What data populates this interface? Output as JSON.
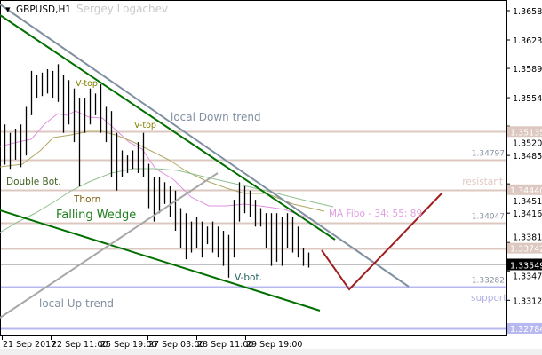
{
  "header": {
    "symbol": "GBPUSD,H1",
    "author": "Sergey Logachev"
  },
  "chart_data": {
    "type": "bar",
    "title": "GBPUSD,H1",
    "ylim": [
      1.3272,
      1.367
    ],
    "y_ticks": [
      "1.36580",
      "1.36230",
      "1.35890",
      "1.35540",
      "1.35200",
      "1.34850",
      "1.34510",
      "1.34160",
      "1.33810",
      "1.33470",
      "1.33120"
    ],
    "x_ticks": [
      "21 Sep 2017",
      "22 Sep 11:00",
      "25 Sep 19:00",
      "27 Sep 03:00",
      "28 Sep 11:00",
      "29 Sep 19:00"
    ],
    "bars_high_low": [
      [
        1.3522,
        1.3474
      ],
      [
        1.3512,
        1.3469
      ],
      [
        1.3517,
        1.348
      ],
      [
        1.3522,
        1.3471
      ],
      [
        1.3543,
        1.3485
      ],
      [
        1.3586,
        1.3533
      ],
      [
        1.3581,
        1.3554
      ],
      [
        1.3584,
        1.3556
      ],
      [
        1.3588,
        1.3559
      ],
      [
        1.3586,
        1.3554
      ],
      [
        1.3594,
        1.3549
      ],
      [
        1.3581,
        1.3512
      ],
      [
        1.3575,
        1.3522
      ],
      [
        1.3565,
        1.3501
      ],
      [
        1.3554,
        1.3448
      ],
      [
        1.3554,
        1.3512
      ],
      [
        1.3565,
        1.3522
      ],
      [
        1.3559,
        1.3533
      ],
      [
        1.357,
        1.3512
      ],
      [
        1.3543,
        1.3501
      ],
      [
        1.3538,
        1.3459
      ],
      [
        1.3512,
        1.3443
      ],
      [
        1.3491,
        1.3459
      ],
      [
        1.3485,
        1.3464
      ],
      [
        1.3491,
        1.3469
      ],
      [
        1.3501,
        1.3464
      ],
      [
        1.3512,
        1.3459
      ],
      [
        1.3475,
        1.3422
      ],
      [
        1.3459,
        1.3406
      ],
      [
        1.3459,
        1.3416
      ],
      [
        1.3453,
        1.3427
      ],
      [
        1.3448,
        1.3411
      ],
      [
        1.3443,
        1.3395
      ],
      [
        1.3422,
        1.3374
      ],
      [
        1.3416,
        1.3361
      ],
      [
        1.3406,
        1.3369
      ],
      [
        1.3411,
        1.3374
      ],
      [
        1.3406,
        1.3363
      ],
      [
        1.34,
        1.3379
      ],
      [
        1.3406,
        1.3369
      ],
      [
        1.34,
        1.3363
      ],
      [
        1.3395,
        1.3353
      ],
      [
        1.339,
        1.3339
      ],
      [
        1.3432,
        1.3363
      ],
      [
        1.3453,
        1.3406
      ],
      [
        1.3448,
        1.3416
      ],
      [
        1.3443,
        1.3411
      ],
      [
        1.3432,
        1.34
      ],
      [
        1.3422,
        1.34
      ],
      [
        1.3416,
        1.3374
      ],
      [
        1.3416,
        1.3353
      ],
      [
        1.3416,
        1.3358
      ],
      [
        1.3411,
        1.3353
      ],
      [
        1.3416,
        1.3374
      ],
      [
        1.3411,
        1.3369
      ],
      [
        1.34,
        1.3363
      ],
      [
        1.3374,
        1.3353
      ],
      [
        1.3369,
        1.3351
      ]
    ],
    "levels": [
      {
        "price": "1.35135",
        "color": "#dcc8c0",
        "badge": true
      },
      {
        "price": "1.34797",
        "color": "#dcc8c0",
        "badge": false
      },
      {
        "price": "1.34440",
        "color": "#dcc8c0",
        "badge": true
      },
      {
        "price": "1.34047",
        "color": "#dcc8c0",
        "badge": false
      },
      {
        "price": "1.33742",
        "color": "#dcc8c0",
        "badge": true
      },
      {
        "price": "1.33282",
        "color": "#b8b8f0",
        "badge": false
      },
      {
        "price": "1.32784",
        "color": "#b8b8f0",
        "badge": true
      }
    ],
    "current_price": "1.33549",
    "annotations": {
      "down_trend": "local Down trend",
      "up_trend": "local Up trend",
      "wedge": "Falling Wedge",
      "thorn": "Thorn",
      "double_bot": "Double Bot.",
      "vtop1": "V-top",
      "vtop2": "V-top",
      "vbot": "V-bot.",
      "ma": "MA Fibo - 34; 55; 89",
      "resistant": "resistant",
      "support": "support"
    },
    "colors": {
      "bars": "#000000",
      "trend_gray": "#8090a0",
      "trend_green": "#007000",
      "forecast": "#a02020",
      "ma34": "#e090e0",
      "ma55": "#b0a860",
      "ma89": "#90c090"
    }
  }
}
